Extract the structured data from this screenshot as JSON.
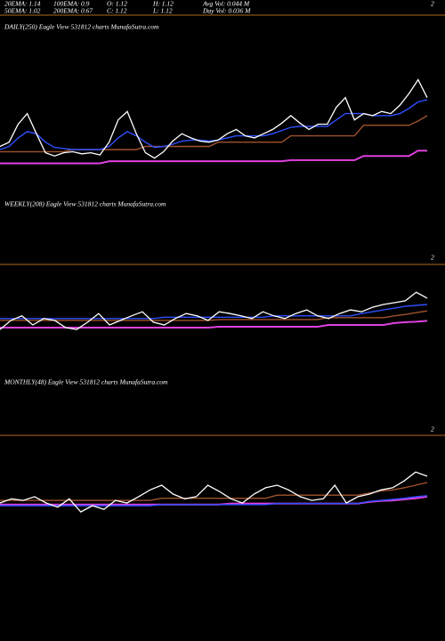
{
  "header": {
    "row1": [
      "20EMA: 1.14",
      "100EMA: 0.9",
      "O: 1.12",
      "H: 1.12",
      "Avg Vol: 0.044 M"
    ],
    "row2": [
      "50EMA: 1.02",
      "200EMA: 0.67",
      "C: 1.12",
      "L: 1.12",
      "Day Vol: 0.036 M"
    ]
  },
  "chart_data": [
    {
      "type": "line",
      "title": "DAILY(250) Eagle  View  531812  charts MunafaSutra.com",
      "ylim": [
        0,
        2
      ],
      "yticks": [
        2
      ],
      "series": [
        {
          "color": "#a0522d",
          "values": [
            0.61,
            0.61,
            0.61,
            0.61,
            0.61,
            0.61,
            0.61,
            0.61,
            0.63,
            0.63,
            0.63,
            0.63,
            0.63,
            0.63,
            0.63,
            0.63,
            0.66,
            0.66,
            0.66,
            0.66,
            0.66,
            0.66,
            0.66,
            0.66,
            0.7,
            0.7,
            0.7,
            0.7,
            0.7,
            0.7,
            0.7,
            0.7,
            0.76,
            0.76,
            0.76,
            0.76,
            0.76,
            0.76,
            0.76,
            0.76,
            0.86,
            0.86,
            0.86,
            0.86,
            0.86,
            0.86,
            0.9,
            0.95
          ]
        },
        {
          "color": "#e040e0",
          "values": [
            0.5,
            0.5,
            0.5,
            0.5,
            0.5,
            0.5,
            0.5,
            0.5,
            0.5,
            0.5,
            0.5,
            0.5,
            0.52,
            0.52,
            0.52,
            0.52,
            0.52,
            0.52,
            0.52,
            0.52,
            0.52,
            0.52,
            0.52,
            0.52,
            0.52,
            0.52,
            0.52,
            0.52,
            0.52,
            0.52,
            0.52,
            0.52,
            0.53,
            0.53,
            0.53,
            0.53,
            0.53,
            0.53,
            0.53,
            0.53,
            0.57,
            0.57,
            0.57,
            0.57,
            0.57,
            0.57,
            0.62,
            0.62
          ]
        },
        {
          "color": "#2f4fff",
          "values": [
            0.63,
            0.66,
            0.74,
            0.8,
            0.78,
            0.7,
            0.65,
            0.64,
            0.63,
            0.63,
            0.63,
            0.63,
            0.66,
            0.74,
            0.8,
            0.76,
            0.7,
            0.65,
            0.66,
            0.68,
            0.71,
            0.72,
            0.72,
            0.71,
            0.72,
            0.74,
            0.76,
            0.76,
            0.76,
            0.76,
            0.78,
            0.81,
            0.84,
            0.85,
            0.85,
            0.85,
            0.85,
            0.91,
            0.97,
            0.97,
            0.97,
            0.95,
            0.95,
            0.95,
            0.97,
            1.02,
            1.08,
            1.1
          ]
        },
        {
          "color": "#ffffff",
          "values": [
            0.66,
            0.7,
            0.87,
            0.97,
            0.78,
            0.6,
            0.57,
            0.6,
            0.61,
            0.59,
            0.6,
            0.58,
            0.7,
            0.91,
            0.99,
            0.78,
            0.6,
            0.55,
            0.61,
            0.71,
            0.78,
            0.74,
            0.71,
            0.7,
            0.72,
            0.78,
            0.82,
            0.76,
            0.74,
            0.78,
            0.82,
            0.88,
            0.95,
            0.88,
            0.82,
            0.87,
            0.87,
            1.03,
            1.12,
            0.91,
            0.97,
            0.95,
            0.99,
            0.97,
            1.05,
            1.16,
            1.29,
            1.12
          ]
        }
      ]
    },
    {
      "type": "line",
      "title": "WEEKLY(208) Eagle  View  531812  charts MunafaSutra.com",
      "ylim": [
        0,
        2
      ],
      "yticks": [
        2
      ],
      "series": [
        {
          "color": "#a0522d",
          "values": [
            0.63,
            0.63,
            0.63,
            0.63,
            0.63,
            0.63,
            0.63,
            0.63,
            0.63,
            0.63,
            0.63,
            0.63,
            0.63,
            0.63,
            0.63,
            0.63,
            0.63,
            0.63,
            0.63,
            0.63,
            0.65,
            0.65,
            0.65,
            0.65,
            0.65,
            0.65,
            0.65,
            0.65,
            0.65,
            0.65,
            0.69,
            0.69,
            0.69,
            0.69,
            0.69,
            0.69,
            0.73,
            0.76,
            0.8,
            0.84
          ]
        },
        {
          "color": "#e040e0",
          "values": [
            0.47,
            0.47,
            0.47,
            0.47,
            0.47,
            0.47,
            0.47,
            0.47,
            0.47,
            0.47,
            0.47,
            0.47,
            0.47,
            0.47,
            0.47,
            0.47,
            0.47,
            0.47,
            0.47,
            0.47,
            0.49,
            0.49,
            0.49,
            0.49,
            0.49,
            0.49,
            0.49,
            0.49,
            0.49,
            0.49,
            0.53,
            0.53,
            0.53,
            0.53,
            0.53,
            0.53,
            0.57,
            0.59,
            0.6,
            0.62
          ]
        },
        {
          "color": "#2f4fff",
          "values": [
            0.67,
            0.67,
            0.67,
            0.67,
            0.67,
            0.67,
            0.67,
            0.67,
            0.67,
            0.67,
            0.67,
            0.67,
            0.67,
            0.67,
            0.67,
            0.7,
            0.7,
            0.7,
            0.7,
            0.7,
            0.7,
            0.7,
            0.7,
            0.7,
            0.7,
            0.73,
            0.73,
            0.73,
            0.73,
            0.73,
            0.73,
            0.73,
            0.73,
            0.78,
            0.82,
            0.86,
            0.9,
            0.94,
            0.96,
            0.98
          ]
        },
        {
          "color": "#ffffff",
          "values": [
            0.43,
            0.63,
            0.73,
            0.53,
            0.67,
            0.63,
            0.47,
            0.43,
            0.59,
            0.78,
            0.53,
            0.63,
            0.73,
            0.82,
            0.59,
            0.53,
            0.67,
            0.78,
            0.73,
            0.63,
            0.82,
            0.78,
            0.73,
            0.67,
            0.82,
            0.73,
            0.67,
            0.78,
            0.86,
            0.73,
            0.67,
            0.78,
            0.86,
            0.82,
            0.92,
            0.98,
            1.02,
            1.06,
            1.25,
            1.12
          ]
        }
      ]
    },
    {
      "type": "line",
      "title": "MONTHLY(48) Eagle  View  531812  charts MunafaSutra.com",
      "ylim": [
        0,
        2
      ],
      "yticks": [
        2
      ],
      "series": [
        {
          "color": "#a0522d",
          "values": [
            0.66,
            0.66,
            0.66,
            0.66,
            0.66,
            0.66,
            0.66,
            0.66,
            0.66,
            0.66,
            0.66,
            0.66,
            0.66,
            0.66,
            0.7,
            0.7,
            0.7,
            0.7,
            0.7,
            0.7,
            0.7,
            0.7,
            0.7,
            0.7,
            0.76,
            0.76,
            0.76,
            0.76,
            0.76,
            0.76,
            0.76,
            0.76,
            0.8,
            0.84,
            0.86,
            0.9,
            0.95,
            1.0
          ]
        },
        {
          "color": "#e040e0",
          "values": [
            0.58,
            0.58,
            0.58,
            0.58,
            0.58,
            0.58,
            0.58,
            0.58,
            0.58,
            0.58,
            0.58,
            0.58,
            0.58,
            0.58,
            0.58,
            0.58,
            0.58,
            0.58,
            0.58,
            0.58,
            0.6,
            0.6,
            0.6,
            0.6,
            0.6,
            0.6,
            0.6,
            0.6,
            0.6,
            0.6,
            0.6,
            0.6,
            0.63,
            0.65,
            0.66,
            0.68,
            0.7,
            0.73
          ]
        },
        {
          "color": "#2f4fff",
          "values": [
            0.56,
            0.56,
            0.56,
            0.56,
            0.56,
            0.56,
            0.56,
            0.56,
            0.56,
            0.56,
            0.56,
            0.56,
            0.56,
            0.56,
            0.58,
            0.58,
            0.58,
            0.58,
            0.58,
            0.58,
            0.58,
            0.58,
            0.58,
            0.58,
            0.6,
            0.6,
            0.6,
            0.6,
            0.6,
            0.6,
            0.6,
            0.6,
            0.64,
            0.66,
            0.68,
            0.7,
            0.73,
            0.75
          ]
        },
        {
          "color": "#ffffff",
          "values": [
            0.61,
            0.69,
            0.66,
            0.73,
            0.61,
            0.53,
            0.69,
            0.44,
            0.56,
            0.49,
            0.66,
            0.61,
            0.73,
            0.86,
            0.95,
            0.78,
            0.69,
            0.73,
            0.95,
            0.83,
            0.69,
            0.61,
            0.78,
            0.9,
            0.95,
            0.86,
            0.73,
            0.66,
            0.69,
            0.95,
            0.61,
            0.73,
            0.78,
            0.86,
            0.9,
            1.03,
            1.2,
            1.12
          ]
        }
      ]
    }
  ]
}
